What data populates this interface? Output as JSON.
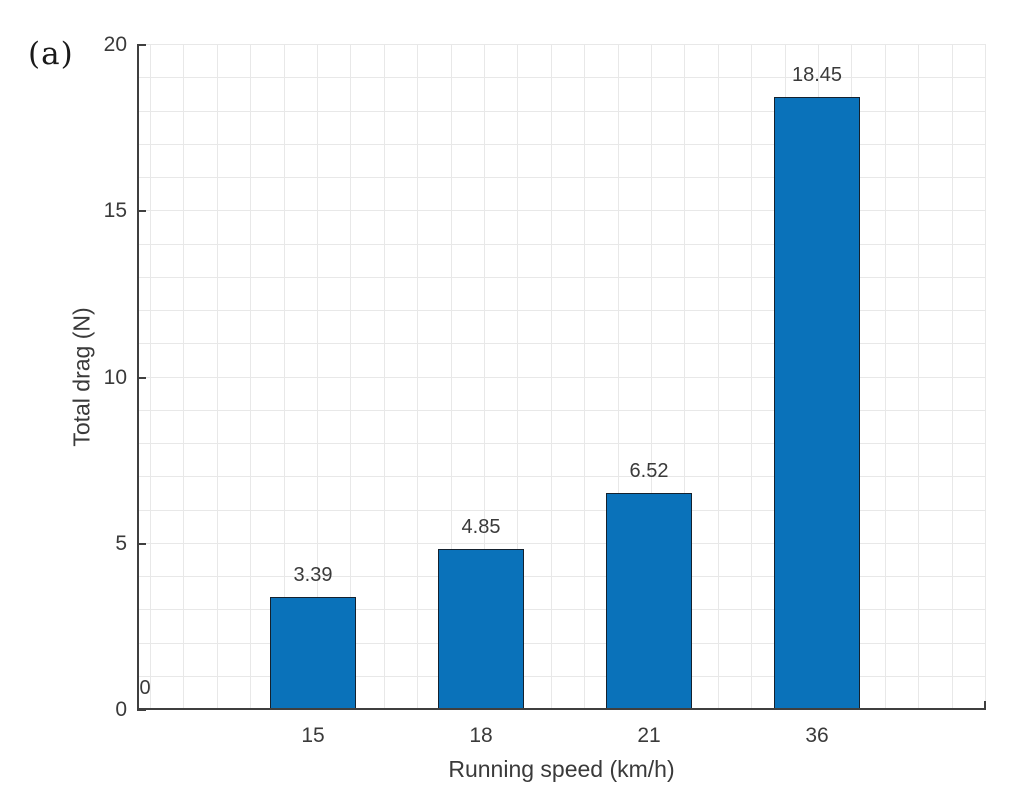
{
  "figure_label": "(a)",
  "chart_data": {
    "type": "bar",
    "title": "",
    "xlabel": "Running speed (km/h)",
    "ylabel": "Total drag (N)",
    "categories": [
      "",
      "15",
      "18",
      "21",
      "36"
    ],
    "values": [
      0,
      3.39,
      4.85,
      6.52,
      18.45
    ],
    "bar_value_labels": [
      "0",
      "3.39",
      "4.85",
      "6.52",
      "18.45"
    ],
    "y_ticks": [
      0,
      5,
      10,
      15,
      20
    ],
    "ylim": [
      0,
      20
    ],
    "grid": "fine square minor grid, on",
    "legend_position": "none",
    "colors": {
      "bar_fill": "#0a72ba",
      "bar_edge": "#14212e",
      "grid": "#e8e8e8",
      "axis": "#3f3f3f",
      "text": "#3a3a3a",
      "background": "#ffffff"
    }
  }
}
